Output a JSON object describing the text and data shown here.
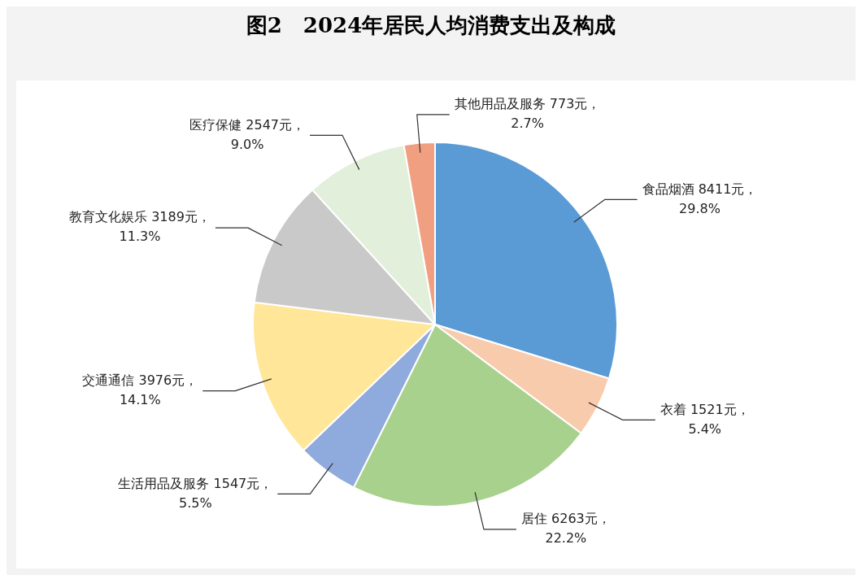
{
  "chart_data": {
    "type": "pie",
    "title": "图2　2024年居民人均消费支出及构成",
    "categories": [
      "食品烟酒",
      "衣着",
      "居住",
      "生活用品及服务",
      "交通通信",
      "教育文化娱乐",
      "医疗保健",
      "其他用品及服务"
    ],
    "values": [
      8411,
      1521,
      6263,
      1547,
      3976,
      3189,
      2547,
      773
    ],
    "value_labels": [
      "8411元，\n29.8%",
      "1521元，\n5.4%",
      "6263元，\n22.2%",
      "1547元，\n5.5%",
      "3976元，\n14.1%",
      "3189元，\n11.3%",
      "2547元，\n9.0%",
      "773元，\n2.7%"
    ],
    "colors": [
      "#5b9bd5",
      "#f8cbad",
      "#a9d18e",
      "#8faadc",
      "#ffe699",
      "#c9c9c9",
      "#e2efda",
      "#f0a080"
    ],
    "legend": false
  }
}
